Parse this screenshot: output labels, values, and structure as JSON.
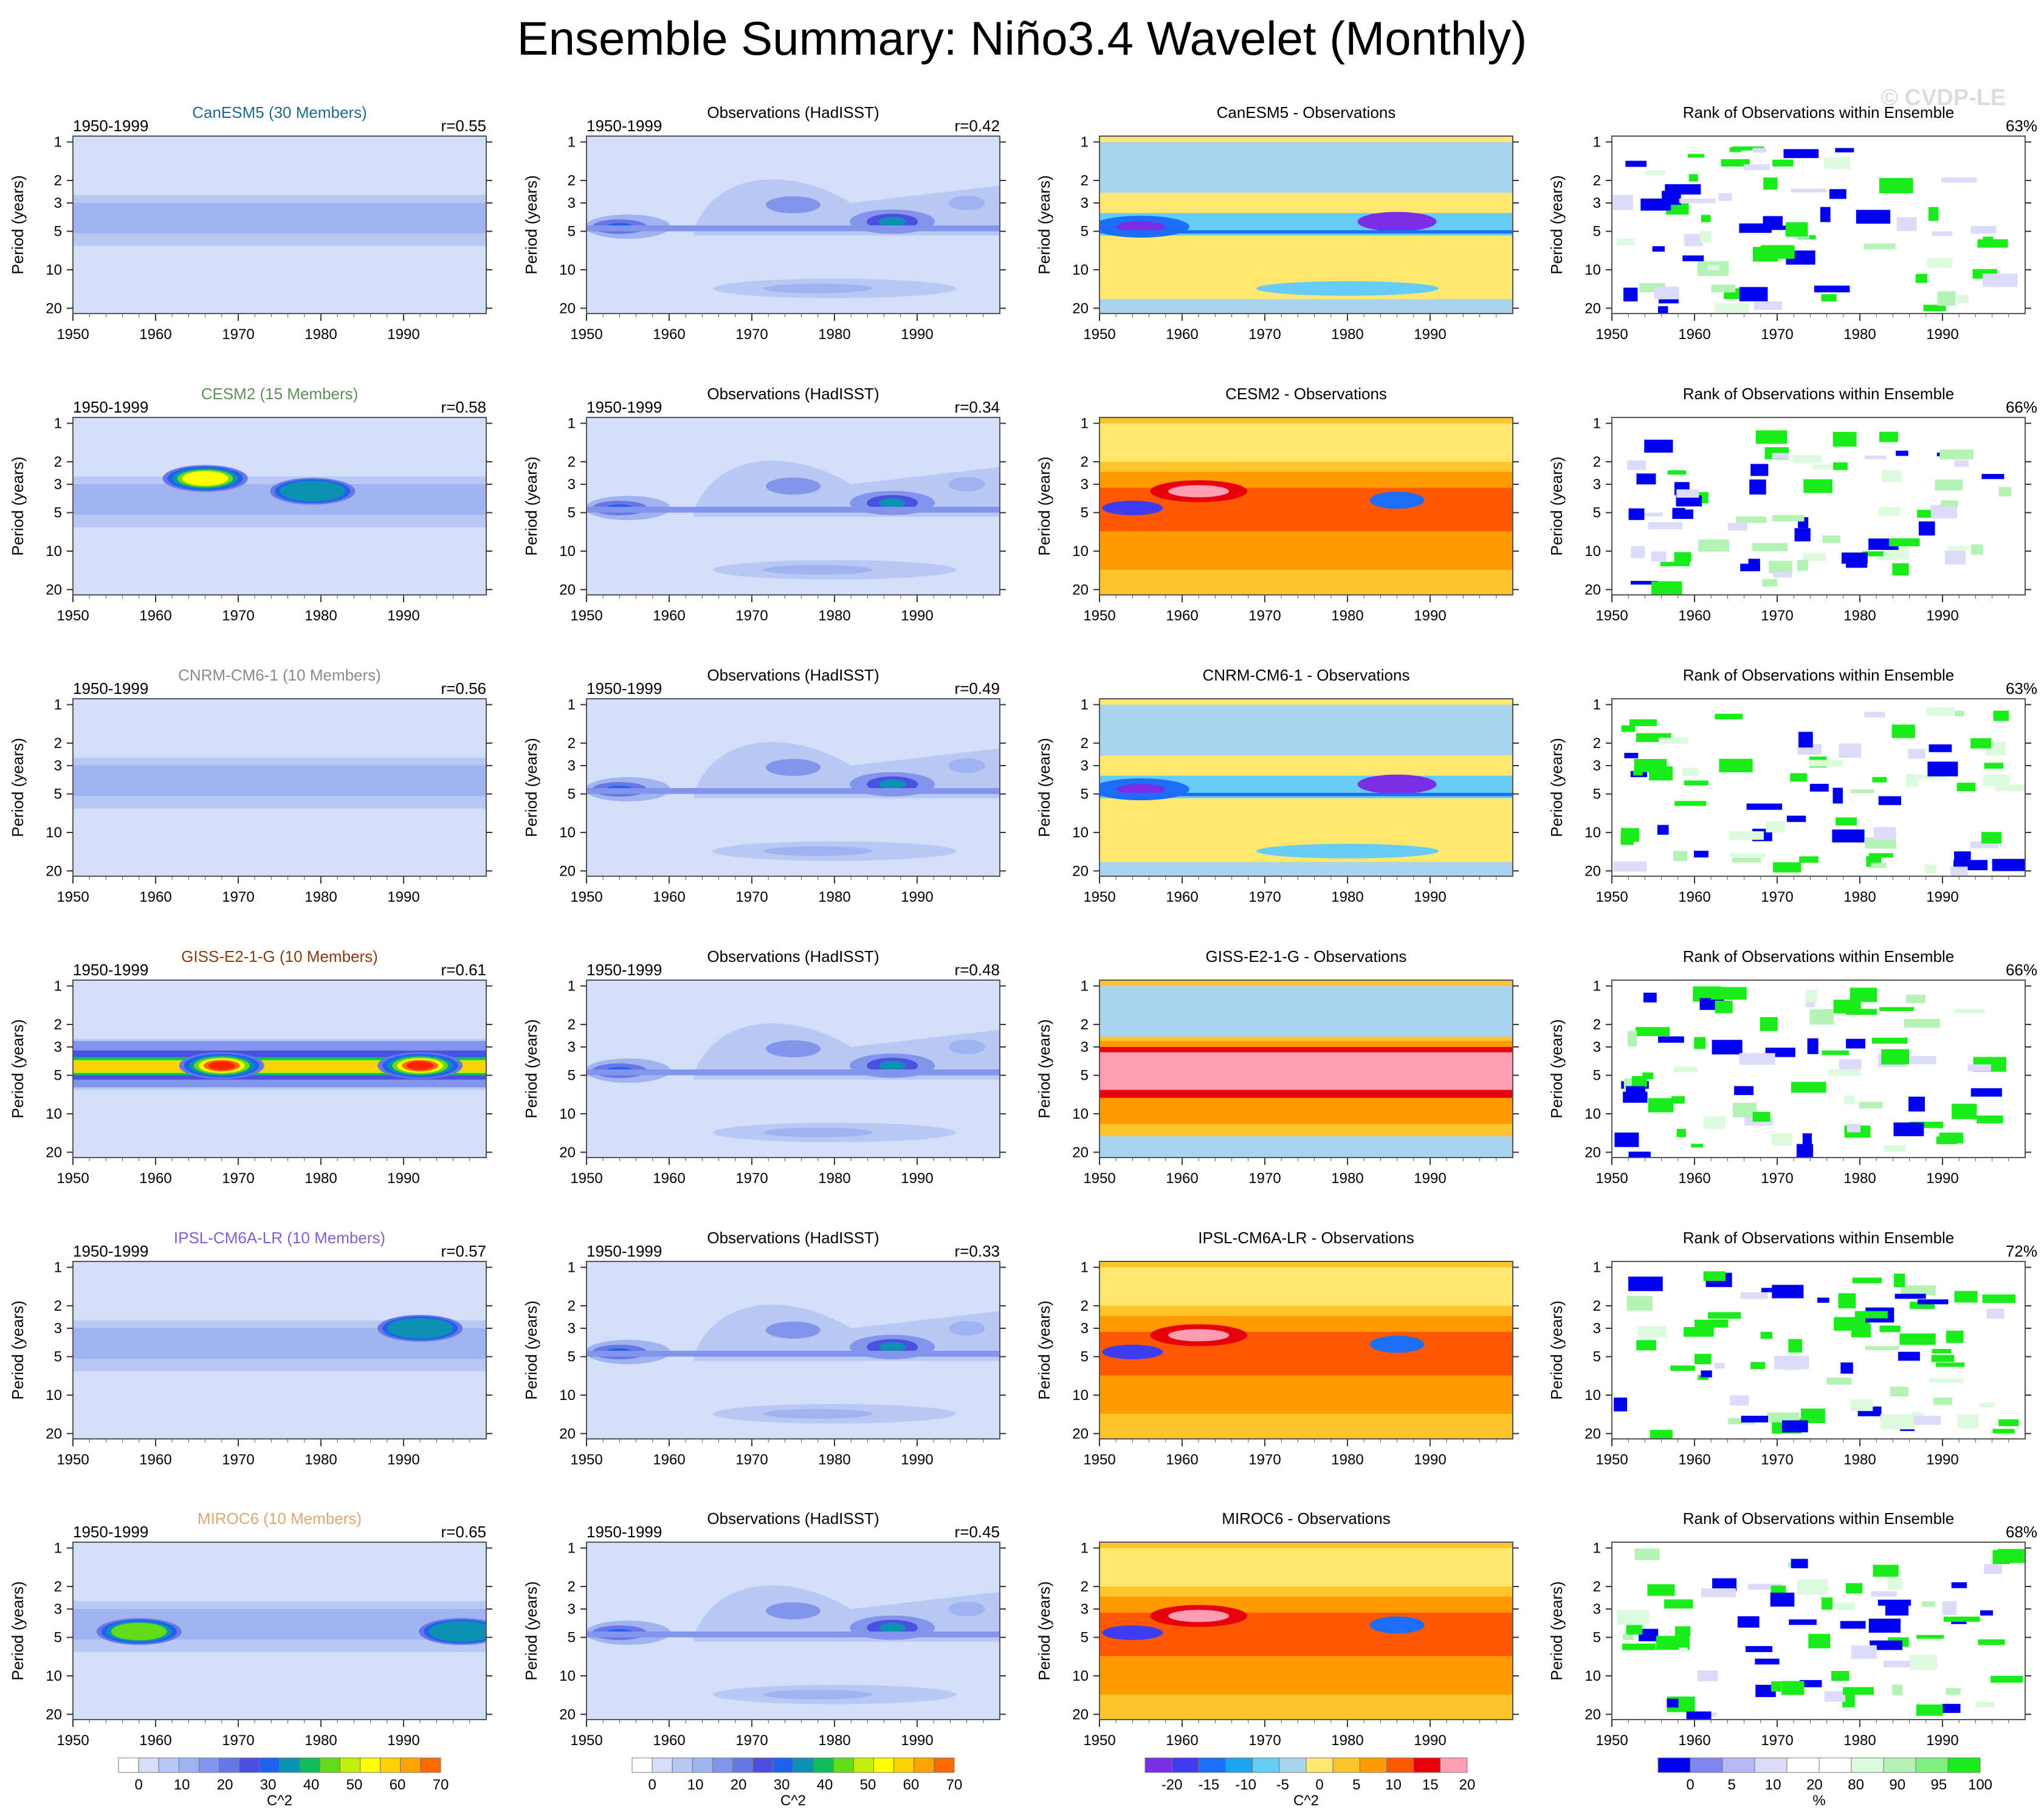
{
  "title": "Ensemble Summary: Niño3.4 Wavelet (Monthly)",
  "watermark": "© CVDP-LE",
  "colors": {
    "power": [
      "#ffffff",
      "#d3dff9",
      "#b8c8f5",
      "#9fb3f0",
      "#8294ec",
      "#6876e6",
      "#4b4fe2",
      "#1e61f0",
      "#0c91b5",
      "#0fbd5c",
      "#62dc19",
      "#c2ee0c",
      "#ffff00",
      "#ffd200",
      "#ffa300",
      "#ff6a00",
      "#ff2100"
    ],
    "difference": [
      "#7b2de6",
      "#3e3bf0",
      "#1b6ef5",
      "#19a3f0",
      "#65cdf5",
      "#a8d4f0",
      "#ffe86d",
      "#ffc52a",
      "#ff9a00",
      "#ff5800",
      "#e8000a",
      "#ff9db4"
    ],
    "rank": [
      "#0000f0",
      "#7f84f0",
      "#b6b9f4",
      "#dcdcfa",
      "#ffffff",
      "#ffffff",
      "#dcfadc",
      "#b5f2b5",
      "#80ef80",
      "#19ed19"
    ]
  },
  "chart_data": [
    {
      "type": "heatmap",
      "panel": "model_power",
      "name": "CanESM5",
      "subtitle": "CanESM5 (30 Members)",
      "subtitle_color": "#1f6a8a",
      "period": "1950-1999",
      "corr": "r=0.55",
      "ylabel": "Period (years)",
      "yticks": [
        "1",
        "2",
        "3",
        "5",
        "10",
        "20"
      ],
      "xticks": [
        "1950",
        "1960",
        "1970",
        "1980",
        "1990"
      ],
      "xlim": [
        1950,
        2000
      ],
      "ylim": [
        1,
        20
      ],
      "yscale": "log",
      "peaks": []
    },
    {
      "type": "heatmap",
      "panel": "obs_power",
      "name": "Observations (HadISST)",
      "subtitle": "Observations (HadISST)",
      "period": "1950-1999",
      "corr": "r=0.42",
      "ylabel": "Period (years)",
      "yticks": [
        "1",
        "2",
        "3",
        "5",
        "10",
        "20"
      ],
      "xticks": [
        "1950",
        "1960",
        "1970",
        "1980",
        "1990"
      ],
      "xlim": [
        1950,
        2000
      ],
      "ylim": [
        1,
        20
      ],
      "yscale": "log"
    },
    {
      "type": "heatmap",
      "panel": "difference",
      "name": "CanESM5 - Observations",
      "subtitle": "CanESM5 - Observations",
      "ylabel": "Period (years)",
      "yticks": [
        "1",
        "2",
        "3",
        "5",
        "10",
        "20"
      ],
      "xticks": [
        "1950",
        "1960",
        "1970",
        "1980",
        "1990"
      ],
      "xlim": [
        1950,
        2000
      ],
      "ylim": [
        1,
        20
      ],
      "yscale": "log",
      "mean_sign": "negative"
    },
    {
      "type": "heatmap",
      "panel": "rank",
      "name": "Rank of Observations within Ensemble",
      "subtitle": "Rank of Observations within Ensemble",
      "pct": "63%",
      "ylabel": "Period (years)",
      "yticks": [
        "1",
        "2",
        "3",
        "5",
        "10",
        "20"
      ],
      "xticks": [
        "1950",
        "1960",
        "1970",
        "1980",
        "1990"
      ],
      "xlim": [
        1950,
        2000
      ],
      "ylim": [
        1,
        20
      ],
      "yscale": "log"
    },
    {
      "type": "heatmap",
      "panel": "model_power",
      "name": "CESM2",
      "subtitle": "CESM2 (15 Members)",
      "subtitle_color": "#5e8f5a",
      "period": "1950-1999",
      "corr": "r=0.58",
      "ylabel": "Period (years)",
      "yticks": [
        "1",
        "2",
        "3",
        "5",
        "10",
        "20"
      ],
      "xticks": [
        "1950",
        "1960",
        "1970",
        "1980",
        "1990"
      ],
      "xlim": [
        1950,
        2000
      ],
      "ylim": [
        1,
        20
      ],
      "yscale": "log",
      "peaks": [
        {
          "x": 1966,
          "period": 2.7,
          "value": 45
        },
        {
          "x": 1979,
          "period": 3.4,
          "value": 30
        }
      ]
    },
    {
      "type": "heatmap",
      "panel": "obs_power",
      "name": "Observations (HadISST)",
      "subtitle": "Observations (HadISST)",
      "period": "1950-1999",
      "corr": "r=0.34",
      "ylabel": "Period (years)",
      "yticks": [
        "1",
        "2",
        "3",
        "5",
        "10",
        "20"
      ],
      "xticks": [
        "1950",
        "1960",
        "1970",
        "1980",
        "1990"
      ],
      "xlim": [
        1950,
        2000
      ],
      "ylim": [
        1,
        20
      ],
      "yscale": "log"
    },
    {
      "type": "heatmap",
      "panel": "difference",
      "name": "CESM2 - Observations",
      "subtitle": "CESM2 - Observations",
      "ylabel": "Period (years)",
      "yticks": [
        "1",
        "2",
        "3",
        "5",
        "10",
        "20"
      ],
      "xticks": [
        "1950",
        "1960",
        "1970",
        "1980",
        "1990"
      ],
      "xlim": [
        1950,
        2000
      ],
      "ylim": [
        1,
        20
      ],
      "yscale": "log",
      "mean_sign": "positive"
    },
    {
      "type": "heatmap",
      "panel": "rank",
      "name": "Rank of Observations within Ensemble",
      "subtitle": "Rank of Observations within Ensemble",
      "pct": "66%",
      "ylabel": "Period (years)",
      "yticks": [
        "1",
        "2",
        "3",
        "5",
        "10",
        "20"
      ],
      "xticks": [
        "1950",
        "1960",
        "1970",
        "1980",
        "1990"
      ],
      "xlim": [
        1950,
        2000
      ],
      "ylim": [
        1,
        20
      ],
      "yscale": "log"
    },
    {
      "type": "heatmap",
      "panel": "model_power",
      "name": "CNRM-CM6-1",
      "subtitle": "CNRM-CM6-1 (10 Members)",
      "subtitle_color": "#8a8a8a",
      "period": "1950-1999",
      "corr": "r=0.56",
      "ylabel": "Period (years)",
      "yticks": [
        "1",
        "2",
        "3",
        "5",
        "10",
        "20"
      ],
      "xticks": [
        "1950",
        "1960",
        "1970",
        "1980",
        "1990"
      ],
      "xlim": [
        1950,
        2000
      ],
      "ylim": [
        1,
        20
      ],
      "yscale": "log",
      "peaks": []
    },
    {
      "type": "heatmap",
      "panel": "obs_power",
      "name": "Observations (HadISST)",
      "subtitle": "Observations (HadISST)",
      "period": "1950-1999",
      "corr": "r=0.49",
      "ylabel": "Period (years)",
      "yticks": [
        "1",
        "2",
        "3",
        "5",
        "10",
        "20"
      ],
      "xticks": [
        "1950",
        "1960",
        "1970",
        "1980",
        "1990"
      ],
      "xlim": [
        1950,
        2000
      ],
      "ylim": [
        1,
        20
      ],
      "yscale": "log"
    },
    {
      "type": "heatmap",
      "panel": "difference",
      "name": "CNRM-CM6-1 - Observations",
      "subtitle": "CNRM-CM6-1 - Observations",
      "ylabel": "Period (years)",
      "yticks": [
        "1",
        "2",
        "3",
        "5",
        "10",
        "20"
      ],
      "xticks": [
        "1950",
        "1960",
        "1970",
        "1980",
        "1990"
      ],
      "xlim": [
        1950,
        2000
      ],
      "ylim": [
        1,
        20
      ],
      "yscale": "log",
      "mean_sign": "negative"
    },
    {
      "type": "heatmap",
      "panel": "rank",
      "name": "Rank of Observations within Ensemble",
      "subtitle": "Rank of Observations within Ensemble",
      "pct": "63%",
      "ylabel": "Period (years)",
      "yticks": [
        "1",
        "2",
        "3",
        "5",
        "10",
        "20"
      ],
      "xticks": [
        "1950",
        "1960",
        "1970",
        "1980",
        "1990"
      ],
      "xlim": [
        1950,
        2000
      ],
      "ylim": [
        1,
        20
      ],
      "yscale": "log"
    },
    {
      "type": "heatmap",
      "panel": "model_power",
      "name": "GISS-E2-1-G",
      "subtitle": "GISS-E2-1-G (10 Members)",
      "subtitle_color": "#8b3a0e",
      "period": "1950-1999",
      "corr": "r=0.61",
      "ylabel": "Period (years)",
      "yticks": [
        "1",
        "2",
        "3",
        "5",
        "10",
        "20"
      ],
      "xticks": [
        "1950",
        "1960",
        "1970",
        "1980",
        "1990"
      ],
      "xlim": [
        1950,
        2000
      ],
      "ylim": [
        1,
        20
      ],
      "yscale": "log",
      "peaks": [
        {
          "x": 1968,
          "period": 4.2,
          "value": 70
        },
        {
          "x": 1992,
          "period": 4.2,
          "value": 70
        }
      ]
    },
    {
      "type": "heatmap",
      "panel": "obs_power",
      "name": "Observations (HadISST)",
      "subtitle": "Observations (HadISST)",
      "period": "1950-1999",
      "corr": "r=0.48",
      "ylabel": "Period (years)",
      "yticks": [
        "1",
        "2",
        "3",
        "5",
        "10",
        "20"
      ],
      "xticks": [
        "1950",
        "1960",
        "1970",
        "1980",
        "1990"
      ],
      "xlim": [
        1950,
        2000
      ],
      "ylim": [
        1,
        20
      ],
      "yscale": "log"
    },
    {
      "type": "heatmap",
      "panel": "difference",
      "name": "GISS-E2-1-G - Observations",
      "subtitle": "GISS-E2-1-G - Observations",
      "ylabel": "Period (years)",
      "yticks": [
        "1",
        "2",
        "3",
        "5",
        "10",
        "20"
      ],
      "xticks": [
        "1950",
        "1960",
        "1970",
        "1980",
        "1990"
      ],
      "xlim": [
        1950,
        2000
      ],
      "ylim": [
        1,
        20
      ],
      "yscale": "log",
      "mean_sign": "strong_positive"
    },
    {
      "type": "heatmap",
      "panel": "rank",
      "name": "Rank of Observations within Ensemble",
      "subtitle": "Rank of Observations within Ensemble",
      "pct": "66%",
      "ylabel": "Period (years)",
      "yticks": [
        "1",
        "2",
        "3",
        "5",
        "10",
        "20"
      ],
      "xticks": [
        "1950",
        "1960",
        "1970",
        "1980",
        "1990"
      ],
      "xlim": [
        1950,
        2000
      ],
      "ylim": [
        1,
        20
      ],
      "yscale": "log"
    },
    {
      "type": "heatmap",
      "panel": "model_power",
      "name": "IPSL-CM6A-LR",
      "subtitle": "IPSL-CM6A-LR (10 Members)",
      "subtitle_color": "#8060d0",
      "period": "1950-1999",
      "corr": "r=0.57",
      "ylabel": "Period (years)",
      "yticks": [
        "1",
        "2",
        "3",
        "5",
        "10",
        "20"
      ],
      "xticks": [
        "1950",
        "1960",
        "1970",
        "1980",
        "1990"
      ],
      "xlim": [
        1950,
        2000
      ],
      "ylim": [
        1,
        20
      ],
      "yscale": "log",
      "peaks": [
        {
          "x": 1992,
          "period": 3.0,
          "value": 30
        }
      ]
    },
    {
      "type": "heatmap",
      "panel": "obs_power",
      "name": "Observations (HadISST)",
      "subtitle": "Observations (HadISST)",
      "period": "1950-1999",
      "corr": "r=0.33",
      "ylabel": "Period (years)",
      "yticks": [
        "1",
        "2",
        "3",
        "5",
        "10",
        "20"
      ],
      "xticks": [
        "1950",
        "1960",
        "1970",
        "1980",
        "1990"
      ],
      "xlim": [
        1950,
        2000
      ],
      "ylim": [
        1,
        20
      ],
      "yscale": "log"
    },
    {
      "type": "heatmap",
      "panel": "difference",
      "name": "IPSL-CM6A-LR - Observations",
      "subtitle": "IPSL-CM6A-LR - Observations",
      "ylabel": "Period (years)",
      "yticks": [
        "1",
        "2",
        "3",
        "5",
        "10",
        "20"
      ],
      "xticks": [
        "1950",
        "1960",
        "1970",
        "1980",
        "1990"
      ],
      "xlim": [
        1950,
        2000
      ],
      "ylim": [
        1,
        20
      ],
      "yscale": "log",
      "mean_sign": "positive"
    },
    {
      "type": "heatmap",
      "panel": "rank",
      "name": "Rank of Observations within Ensemble",
      "subtitle": "Rank of Observations within Ensemble",
      "pct": "72%",
      "ylabel": "Period (years)",
      "yticks": [
        "1",
        "2",
        "3",
        "5",
        "10",
        "20"
      ],
      "xticks": [
        "1950",
        "1960",
        "1970",
        "1980",
        "1990"
      ],
      "xlim": [
        1950,
        2000
      ],
      "ylim": [
        1,
        20
      ],
      "yscale": "log"
    },
    {
      "type": "heatmap",
      "panel": "model_power",
      "name": "MIROC6",
      "subtitle": "MIROC6 (10 Members)",
      "subtitle_color": "#d8a878",
      "period": "1950-1999",
      "corr": "r=0.65",
      "ylabel": "Period (years)",
      "yticks": [
        "1",
        "2",
        "3",
        "5",
        "10",
        "20"
      ],
      "xticks": [
        "1950",
        "1960",
        "1970",
        "1980",
        "1990"
      ],
      "xlim": [
        1950,
        2000
      ],
      "ylim": [
        1,
        20
      ],
      "yscale": "log",
      "peaks": [
        {
          "x": 1958,
          "period": 4.5,
          "value": 40
        },
        {
          "x": 1997,
          "period": 4.5,
          "value": 30
        }
      ]
    },
    {
      "type": "heatmap",
      "panel": "obs_power",
      "name": "Observations (HadISST)",
      "subtitle": "Observations (HadISST)",
      "period": "1950-1999",
      "corr": "r=0.45",
      "ylabel": "Period (years)",
      "yticks": [
        "1",
        "2",
        "3",
        "5",
        "10",
        "20"
      ],
      "xticks": [
        "1950",
        "1960",
        "1970",
        "1980",
        "1990"
      ],
      "xlim": [
        1950,
        2000
      ],
      "ylim": [
        1,
        20
      ],
      "yscale": "log"
    },
    {
      "type": "heatmap",
      "panel": "difference",
      "name": "MIROC6 - Observations",
      "subtitle": "MIROC6 - Observations",
      "ylabel": "Period (years)",
      "yticks": [
        "1",
        "2",
        "3",
        "5",
        "10",
        "20"
      ],
      "xticks": [
        "1950",
        "1960",
        "1970",
        "1980",
        "1990"
      ],
      "xlim": [
        1950,
        2000
      ],
      "ylim": [
        1,
        20
      ],
      "yscale": "log",
      "mean_sign": "positive"
    },
    {
      "type": "heatmap",
      "panel": "rank",
      "name": "Rank of Observations within Ensemble",
      "subtitle": "Rank of Observations within Ensemble",
      "pct": "68%",
      "ylabel": "Period (years)",
      "yticks": [
        "1",
        "2",
        "3",
        "5",
        "10",
        "20"
      ],
      "xticks": [
        "1950",
        "1960",
        "1970",
        "1980",
        "1990"
      ],
      "xlim": [
        1950,
        2000
      ],
      "ylim": [
        1,
        20
      ],
      "yscale": "log"
    }
  ],
  "colorbars": [
    {
      "name": "power",
      "units": "C^2",
      "labels": [
        "0",
        "10",
        "20",
        "30",
        "40",
        "50",
        "60",
        "70"
      ]
    },
    {
      "name": "power",
      "units": "C^2",
      "labels": [
        "0",
        "10",
        "20",
        "30",
        "40",
        "50",
        "60",
        "70"
      ]
    },
    {
      "name": "difference",
      "units": "C^2",
      "labels": [
        "-20",
        "-15",
        "-10",
        "-5",
        "0",
        "5",
        "10",
        "15",
        "20"
      ]
    },
    {
      "name": "rank",
      "units": "%",
      "labels": [
        "0",
        "5",
        "10",
        "20",
        "80",
        "90",
        "95",
        "100"
      ]
    }
  ]
}
